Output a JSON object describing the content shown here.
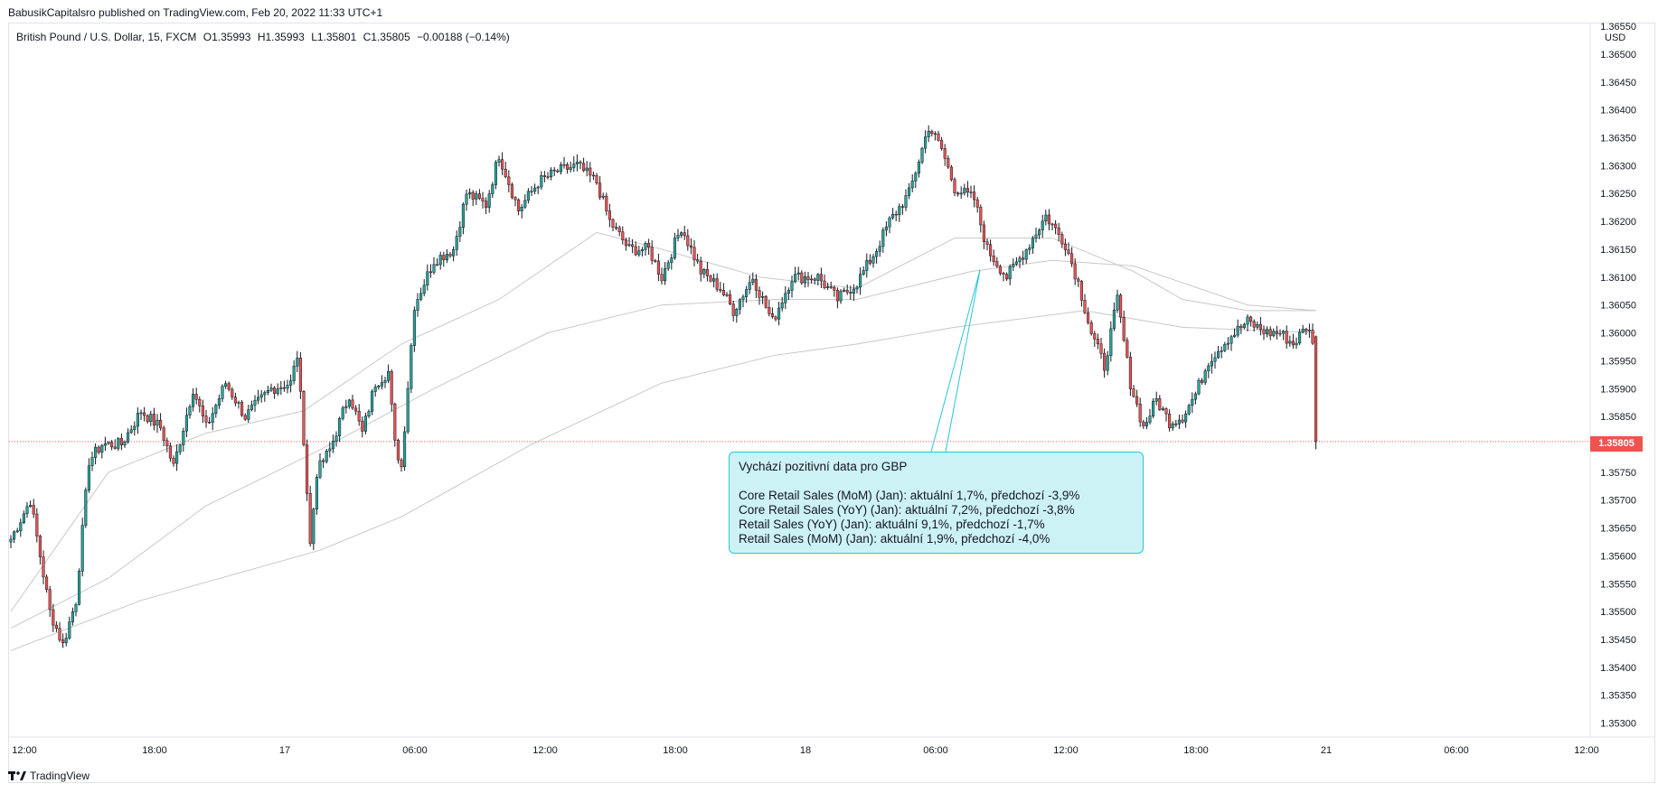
{
  "header": {
    "published_text": "BabusikCapitalsro published on TradingView.com, Feb 20, 2022 11:33 UTC+1"
  },
  "symbol": {
    "name": "British Pound / U.S. Dollar, 15, FXCM",
    "open": "O1.35993",
    "high": "H1.35993",
    "low": "L1.35801",
    "close": "C1.35805",
    "change": "−0.00188 (−0.14%)"
  },
  "price_axis": {
    "unit": "USD",
    "last_price": "1.35805"
  },
  "annotation": {
    "title": "Vychází pozitivní data pro GBP",
    "lines": [
      "Core Retail Sales (MoM) (Jan): aktuální 1,7%, předchozí -3,9%",
      "Core Retail Sales (YoY) (Jan): aktuální 7,2%, předchozí -3,8%",
      "Retail Sales (YoY) (Jan): aktuální 9,1%, předchozí -1,7%",
      "Retail Sales (MoM) (Jan): aktuální 1,9%, předchozí -4,0%"
    ]
  },
  "footer": {
    "brand": "TradingView"
  },
  "colors": {
    "up": "#26a69a",
    "down": "#ef5350",
    "ma": "#c8c8c8",
    "grid_border": "#e0e3eb",
    "annotation_bg": "#cdf2f5",
    "annotation_border": "#26c6da"
  },
  "chart_data": {
    "type": "candlestick",
    "ylim": [
      1.35275,
      1.36555
    ],
    "y_ticks": [
      "1.36550",
      "1.36500",
      "1.36450",
      "1.36400",
      "1.36350",
      "1.36300",
      "1.36250",
      "1.36200",
      "1.36150",
      "1.36100",
      "1.36050",
      "1.36000",
      "1.35950",
      "1.35900",
      "1.35850",
      "1.35800",
      "1.35750",
      "1.35700",
      "1.35650",
      "1.35600",
      "1.35550",
      "1.35500",
      "1.35450",
      "1.35400",
      "1.35350",
      "1.35300"
    ],
    "x_ticks": [
      "12:00",
      "18:00",
      "17",
      "06:00",
      "12:00",
      "18:00",
      "18",
      "06:00",
      "12:00",
      "18:00",
      "21",
      "06:00",
      "12:00"
    ],
    "last_close": 1.35805,
    "candle_anchors": [
      [
        0,
        1.3563
      ],
      [
        6,
        1.357
      ],
      [
        12,
        1.355
      ],
      [
        16,
        1.3544
      ],
      [
        20,
        1.3552
      ],
      [
        24,
        1.3577
      ],
      [
        28,
        1.358
      ],
      [
        34,
        1.358
      ],
      [
        40,
        1.3586
      ],
      [
        46,
        1.3583
      ],
      [
        50,
        1.3576
      ],
      [
        56,
        1.359
      ],
      [
        60,
        1.3583
      ],
      [
        66,
        1.3591
      ],
      [
        72,
        1.3585
      ],
      [
        80,
        1.359
      ],
      [
        86,
        1.3591
      ],
      [
        88,
        1.3596
      ],
      [
        90,
        1.3581
      ],
      [
        92,
        1.3562
      ],
      [
        94,
        1.3575
      ],
      [
        98,
        1.3579
      ],
      [
        104,
        1.3589
      ],
      [
        108,
        1.3582
      ],
      [
        112,
        1.3591
      ],
      [
        116,
        1.3593
      ],
      [
        118,
        1.358
      ],
      [
        120,
        1.3576
      ],
      [
        124,
        1.3605
      ],
      [
        130,
        1.3613
      ],
      [
        136,
        1.3615
      ],
      [
        140,
        1.3625
      ],
      [
        146,
        1.3623
      ],
      [
        150,
        1.3632
      ],
      [
        156,
        1.3622
      ],
      [
        162,
        1.3627
      ],
      [
        168,
        1.3629
      ],
      [
        174,
        1.363
      ],
      [
        180,
        1.3627
      ],
      [
        184,
        1.362
      ],
      [
        190,
        1.3615
      ],
      [
        196,
        1.3615
      ],
      [
        200,
        1.361
      ],
      [
        206,
        1.3619
      ],
      [
        212,
        1.3611
      ],
      [
        218,
        1.3608
      ],
      [
        222,
        1.3604
      ],
      [
        228,
        1.361
      ],
      [
        234,
        1.3602
      ],
      [
        240,
        1.361
      ],
      [
        248,
        1.361
      ],
      [
        254,
        1.3606
      ],
      [
        260,
        1.3609
      ],
      [
        266,
        1.3615
      ],
      [
        270,
        1.362
      ],
      [
        276,
        1.3625
      ],
      [
        282,
        1.3637
      ],
      [
        286,
        1.3633
      ],
      [
        290,
        1.3626
      ],
      [
        296,
        1.3624
      ],
      [
        300,
        1.3615
      ],
      [
        306,
        1.361
      ],
      [
        312,
        1.3615
      ],
      [
        318,
        1.3621
      ],
      [
        324,
        1.3616
      ],
      [
        328,
        1.3609
      ],
      [
        332,
        1.36
      ],
      [
        336,
        1.3594
      ],
      [
        340,
        1.3606
      ],
      [
        344,
        1.3591
      ],
      [
        348,
        1.3583
      ],
      [
        352,
        1.3588
      ],
      [
        356,
        1.3584
      ],
      [
        360,
        1.3585
      ],
      [
        364,
        1.3589
      ],
      [
        368,
        1.3595
      ],
      [
        374,
        1.3599
      ],
      [
        380,
        1.3602
      ],
      [
        386,
        1.36
      ],
      [
        390,
        1.36
      ],
      [
        394,
        1.3598
      ],
      [
        398,
        1.3601
      ],
      [
        400,
        1.3599
      ],
      [
        401,
        1.35805
      ]
    ],
    "moving_averages": [
      {
        "values": [
          [
            0,
            1.355
          ],
          [
            30,
            1.3575
          ],
          [
            60,
            1.3582
          ],
          [
            90,
            1.3586
          ],
          [
            120,
            1.3598
          ],
          [
            150,
            1.3606
          ],
          [
            180,
            1.3618
          ],
          [
            200,
            1.3615
          ],
          [
            230,
            1.361
          ],
          [
            260,
            1.3608
          ],
          [
            290,
            1.3617
          ],
          [
            320,
            1.3617
          ],
          [
            345,
            1.3611
          ],
          [
            360,
            1.3606
          ],
          [
            380,
            1.3604
          ],
          [
            401,
            1.3604
          ]
        ]
      },
      {
        "values": [
          [
            0,
            1.3547
          ],
          [
            30,
            1.3556
          ],
          [
            60,
            1.3569
          ],
          [
            95,
            1.3579
          ],
          [
            130,
            1.359
          ],
          [
            165,
            1.36
          ],
          [
            200,
            1.3605
          ],
          [
            235,
            1.3606
          ],
          [
            260,
            1.3606
          ],
          [
            295,
            1.3611
          ],
          [
            320,
            1.3613
          ],
          [
            345,
            1.3612
          ],
          [
            380,
            1.3605
          ],
          [
            401,
            1.3604
          ]
        ]
      },
      {
        "values": [
          [
            0,
            1.3543
          ],
          [
            40,
            1.3552
          ],
          [
            95,
            1.3561
          ],
          [
            120,
            1.3567
          ],
          [
            160,
            1.358
          ],
          [
            200,
            1.3591
          ],
          [
            235,
            1.3596
          ],
          [
            260,
            1.3598
          ],
          [
            290,
            1.3601
          ],
          [
            330,
            1.3604
          ],
          [
            360,
            1.3601
          ],
          [
            401,
            1.36
          ]
        ]
      }
    ]
  }
}
